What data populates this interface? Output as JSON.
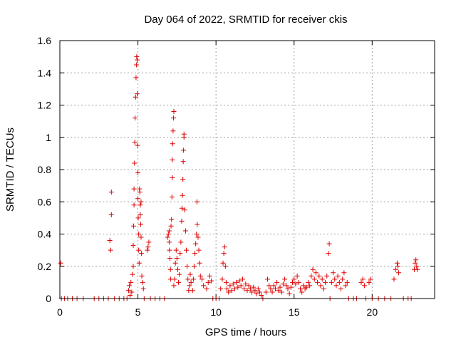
{
  "chart_data": {
    "type": "scatter",
    "title": "Day 064 of 2022, SRMTID for receiver ckis",
    "xlabel": "GPS time / hours",
    "ylabel": "SRMTID / TECUs",
    "xlim": [
      0,
      24
    ],
    "ylim": [
      0,
      1.6
    ],
    "xticks": [
      0,
      5,
      10,
      15,
      20
    ],
    "xtick_labels": [
      "0",
      "5",
      "10",
      "15",
      "20"
    ],
    "yticks": [
      0,
      0.2,
      0.4,
      0.6,
      0.8,
      1.0,
      1.2,
      1.4,
      1.6
    ],
    "ytick_labels": [
      "0",
      "0.2",
      "0.4",
      "0.6",
      "0.8",
      "1",
      "1.2",
      "1.4",
      "1.6"
    ],
    "grid": true,
    "marker_color": "#dd0000",
    "series": [
      {
        "name": "SRMTID",
        "points": [
          [
            0.05,
            0.22
          ],
          [
            0.1,
            0.0
          ],
          [
            0.3,
            0.0
          ],
          [
            0.5,
            0.0
          ],
          [
            0.8,
            0.0
          ],
          [
            1.1,
            0.0
          ],
          [
            1.5,
            0.0
          ],
          [
            2.2,
            0.0
          ],
          [
            2.5,
            0.0
          ],
          [
            2.8,
            0.0
          ],
          [
            3.1,
            0.0
          ],
          [
            3.2,
            0.36
          ],
          [
            3.25,
            0.3
          ],
          [
            3.3,
            0.52
          ],
          [
            3.3,
            0.66
          ],
          [
            3.5,
            0.0
          ],
          [
            3.8,
            0.0
          ],
          [
            4.1,
            0.0
          ],
          [
            4.3,
            0.0
          ],
          [
            4.4,
            0.05
          ],
          [
            4.45,
            0.08
          ],
          [
            4.5,
            0.02
          ],
          [
            4.55,
            0.1
          ],
          [
            4.6,
            0.04
          ],
          [
            4.65,
            0.15
          ],
          [
            4.7,
            0.2
          ],
          [
            4.7,
            0.33
          ],
          [
            4.72,
            0.45
          ],
          [
            4.75,
            0.58
          ],
          [
            4.75,
            0.68
          ],
          [
            4.78,
            0.84
          ],
          [
            4.8,
            0.97
          ],
          [
            4.82,
            1.12
          ],
          [
            4.85,
            1.25
          ],
          [
            4.88,
            1.37
          ],
          [
            4.9,
            1.45
          ],
          [
            4.92,
            1.5
          ],
          [
            4.95,
            1.48
          ],
          [
            4.95,
            1.27
          ],
          [
            4.98,
            0.95
          ],
          [
            5.0,
            0.78
          ],
          [
            5.0,
            0.62
          ],
          [
            5.02,
            0.5
          ],
          [
            5.05,
            0.4
          ],
          [
            5.05,
            0.3
          ],
          [
            5.08,
            0.22
          ],
          [
            5.1,
            0.68
          ],
          [
            5.12,
            0.66
          ],
          [
            5.15,
            0.58
          ],
          [
            5.15,
            0.52
          ],
          [
            5.18,
            0.46
          ],
          [
            5.2,
            0.6
          ],
          [
            5.2,
            0.38
          ],
          [
            5.22,
            0.28
          ],
          [
            5.25,
            0.14
          ],
          [
            5.3,
            0.1
          ],
          [
            5.35,
            0.06
          ],
          [
            5.4,
            0.0
          ],
          [
            5.6,
            0.3
          ],
          [
            5.65,
            0.32
          ],
          [
            5.7,
            0.35
          ],
          [
            5.8,
            0.0
          ],
          [
            6.1,
            0.0
          ],
          [
            6.4,
            0.0
          ],
          [
            6.7,
            0.0
          ],
          [
            6.9,
            0.38
          ],
          [
            6.95,
            0.4
          ],
          [
            7.0,
            0.42
          ],
          [
            7.0,
            0.35
          ],
          [
            7.02,
            0.3
          ],
          [
            7.05,
            0.25
          ],
          [
            7.08,
            0.18
          ],
          [
            7.1,
            0.12
          ],
          [
            7.12,
            0.45
          ],
          [
            7.15,
            0.49
          ],
          [
            7.18,
            0.63
          ],
          [
            7.2,
            0.75
          ],
          [
            7.2,
            0.86
          ],
          [
            7.22,
            0.96
          ],
          [
            7.25,
            1.04
          ],
          [
            7.28,
            1.12
          ],
          [
            7.3,
            1.16
          ],
          [
            7.3,
            0.08
          ],
          [
            7.35,
            0.12
          ],
          [
            7.4,
            0.22
          ],
          [
            7.45,
            0.3
          ],
          [
            7.5,
            0.25
          ],
          [
            7.55,
            0.18
          ],
          [
            7.6,
            0.1
          ],
          [
            7.65,
            0.15
          ],
          [
            7.7,
            0.28
          ],
          [
            7.75,
            0.35
          ],
          [
            7.8,
            0.48
          ],
          [
            7.82,
            0.56
          ],
          [
            7.85,
            0.64
          ],
          [
            7.88,
            0.74
          ],
          [
            7.9,
            0.85
          ],
          [
            7.92,
            0.92
          ],
          [
            7.95,
            1.0
          ],
          [
            7.95,
            1.02
          ],
          [
            8.0,
            0.55
          ],
          [
            8.05,
            0.42
          ],
          [
            8.1,
            0.3
          ],
          [
            8.15,
            0.2
          ],
          [
            8.2,
            0.12
          ],
          [
            8.25,
            0.05
          ],
          [
            8.3,
            0.08
          ],
          [
            8.35,
            0.15
          ],
          [
            8.4,
            0.1
          ],
          [
            8.5,
            0.05
          ],
          [
            8.55,
            0.12
          ],
          [
            8.6,
            0.2
          ],
          [
            8.65,
            0.28
          ],
          [
            8.7,
            0.34
          ],
          [
            8.75,
            0.4
          ],
          [
            8.78,
            0.6
          ],
          [
            8.8,
            0.46
          ],
          [
            8.85,
            0.38
          ],
          [
            8.9,
            0.3
          ],
          [
            8.95,
            0.22
          ],
          [
            9.0,
            0.14
          ],
          [
            9.1,
            0.12
          ],
          [
            9.2,
            0.08
          ],
          [
            9.4,
            0.06
          ],
          [
            9.5,
            0.1
          ],
          [
            9.6,
            0.14
          ],
          [
            9.7,
            0.11
          ],
          [
            9.8,
            0.0
          ],
          [
            10.0,
            0.0
          ],
          [
            10.2,
            0.0
          ],
          [
            10.3,
            0.06
          ],
          [
            10.4,
            0.12
          ],
          [
            10.45,
            0.22
          ],
          [
            10.5,
            0.28
          ],
          [
            10.55,
            0.32
          ],
          [
            10.6,
            0.2
          ],
          [
            10.65,
            0.1
          ],
          [
            10.7,
            0.06
          ],
          [
            10.8,
            0.04
          ],
          [
            10.9,
            0.08
          ],
          [
            11.0,
            0.05
          ],
          [
            11.1,
            0.09
          ],
          [
            11.2,
            0.06
          ],
          [
            11.3,
            0.1
          ],
          [
            11.4,
            0.07
          ],
          [
            11.5,
            0.11
          ],
          [
            11.6,
            0.08
          ],
          [
            11.7,
            0.12
          ],
          [
            11.8,
            0.06
          ],
          [
            11.9,
            0.09
          ],
          [
            12.0,
            0.05
          ],
          [
            12.1,
            0.08
          ],
          [
            12.2,
            0.06
          ],
          [
            12.3,
            0.04
          ],
          [
            12.4,
            0.07
          ],
          [
            12.5,
            0.05
          ],
          [
            12.6,
            0.03
          ],
          [
            12.7,
            0.06
          ],
          [
            12.8,
            0.04
          ],
          [
            12.9,
            0.02
          ],
          [
            13.0,
            0.0
          ],
          [
            13.2,
            0.04
          ],
          [
            13.3,
            0.12
          ],
          [
            13.4,
            0.08
          ],
          [
            13.5,
            0.06
          ],
          [
            13.6,
            0.04
          ],
          [
            13.7,
            0.08
          ],
          [
            13.8,
            0.06
          ],
          [
            13.9,
            0.1
          ],
          [
            14.0,
            0.05
          ],
          [
            14.1,
            0.07
          ],
          [
            14.2,
            0.04
          ],
          [
            14.3,
            0.09
          ],
          [
            14.4,
            0.12
          ],
          [
            14.5,
            0.08
          ],
          [
            14.6,
            0.06
          ],
          [
            14.7,
            0.03
          ],
          [
            14.8,
            0.07
          ],
          [
            14.9,
            0.1
          ],
          [
            15.0,
            0.12
          ],
          [
            15.1,
            0.09
          ],
          [
            15.2,
            0.14
          ],
          [
            15.3,
            0.1
          ],
          [
            15.4,
            0.06
          ],
          [
            15.5,
            0.04
          ],
          [
            15.6,
            0.08
          ],
          [
            15.7,
            0.06
          ],
          [
            15.8,
            0.07
          ],
          [
            15.9,
            0.1
          ],
          [
            16.0,
            0.08
          ],
          [
            16.1,
            0.14
          ],
          [
            16.2,
            0.18
          ],
          [
            16.3,
            0.12
          ],
          [
            16.4,
            0.16
          ],
          [
            16.5,
            0.1
          ],
          [
            16.6,
            0.14
          ],
          [
            16.7,
            0.08
          ],
          [
            16.8,
            0.12
          ],
          [
            16.9,
            0.06
          ],
          [
            17.0,
            0.1
          ],
          [
            17.1,
            0.14
          ],
          [
            17.2,
            0.28
          ],
          [
            17.25,
            0.34
          ],
          [
            17.3,
            0.0
          ],
          [
            17.4,
            0.1
          ],
          [
            17.5,
            0.16
          ],
          [
            17.6,
            0.12
          ],
          [
            17.7,
            0.08
          ],
          [
            17.8,
            0.14
          ],
          [
            17.9,
            0.1
          ],
          [
            18.0,
            0.06
          ],
          [
            18.1,
            0.12
          ],
          [
            18.2,
            0.16
          ],
          [
            18.3,
            0.08
          ],
          [
            18.4,
            0.1
          ],
          [
            18.5,
            0.0
          ],
          [
            18.8,
            0.0
          ],
          [
            19.0,
            0.0
          ],
          [
            19.3,
            0.1
          ],
          [
            19.4,
            0.12
          ],
          [
            19.5,
            0.08
          ],
          [
            19.6,
            0.0
          ],
          [
            19.8,
            0.1
          ],
          [
            19.9,
            0.12
          ],
          [
            20.0,
            0.0
          ],
          [
            20.4,
            0.0
          ],
          [
            20.8,
            0.0
          ],
          [
            21.2,
            0.0
          ],
          [
            21.4,
            0.12
          ],
          [
            21.5,
            0.18
          ],
          [
            21.6,
            0.22
          ],
          [
            21.65,
            0.2
          ],
          [
            21.7,
            0.16
          ],
          [
            22.0,
            0.0
          ],
          [
            22.3,
            0.0
          ],
          [
            22.5,
            0.0
          ],
          [
            22.7,
            0.18
          ],
          [
            22.75,
            0.22
          ],
          [
            22.8,
            0.24
          ],
          [
            22.85,
            0.2
          ],
          [
            22.9,
            0.18
          ]
        ]
      }
    ]
  }
}
